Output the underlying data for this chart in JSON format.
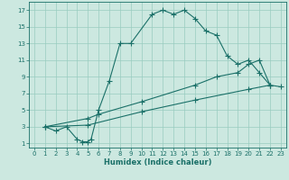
{
  "xlabel": "Humidex (Indice chaleur)",
  "bg_color": "#cce8e0",
  "grid_color": "#99ccc0",
  "line_color": "#1a7068",
  "xlim": [
    -0.5,
    23.5
  ],
  "ylim": [
    0.5,
    18
  ],
  "xticks": [
    0,
    1,
    2,
    3,
    4,
    5,
    6,
    7,
    8,
    9,
    10,
    11,
    12,
    13,
    14,
    15,
    16,
    17,
    18,
    19,
    20,
    21,
    22,
    23
  ],
  "yticks": [
    1,
    3,
    5,
    7,
    9,
    11,
    13,
    15,
    17
  ],
  "curve1_x": [
    1,
    2,
    3,
    4,
    4.5,
    5,
    5.3,
    6,
    7,
    8,
    9,
    11,
    12,
    13,
    14,
    15,
    16,
    17,
    18,
    19,
    20,
    21,
    22
  ],
  "curve1_y": [
    3,
    2.5,
    3,
    1.5,
    1.2,
    1.2,
    1.5,
    5.0,
    8.5,
    13.0,
    13.0,
    16.5,
    17.0,
    16.5,
    17.0,
    16.0,
    14.5,
    14.0,
    11.5,
    10.5,
    11.0,
    9.5,
    8.0
  ],
  "curve2_x": [
    1,
    5,
    6,
    10,
    15,
    17,
    19,
    20,
    21,
    22
  ],
  "curve2_y": [
    3,
    4.0,
    4.5,
    6.0,
    8.0,
    9.0,
    9.5,
    10.5,
    11.0,
    8.0
  ],
  "curve3_x": [
    1,
    5,
    10,
    15,
    20,
    22,
    23
  ],
  "curve3_y": [
    3,
    3.2,
    4.8,
    6.2,
    7.5,
    8.0,
    7.8
  ],
  "marker": "+",
  "markersize": 4,
  "linewidth": 0.8,
  "xlabel_fontsize": 6,
  "tick_fontsize": 5
}
